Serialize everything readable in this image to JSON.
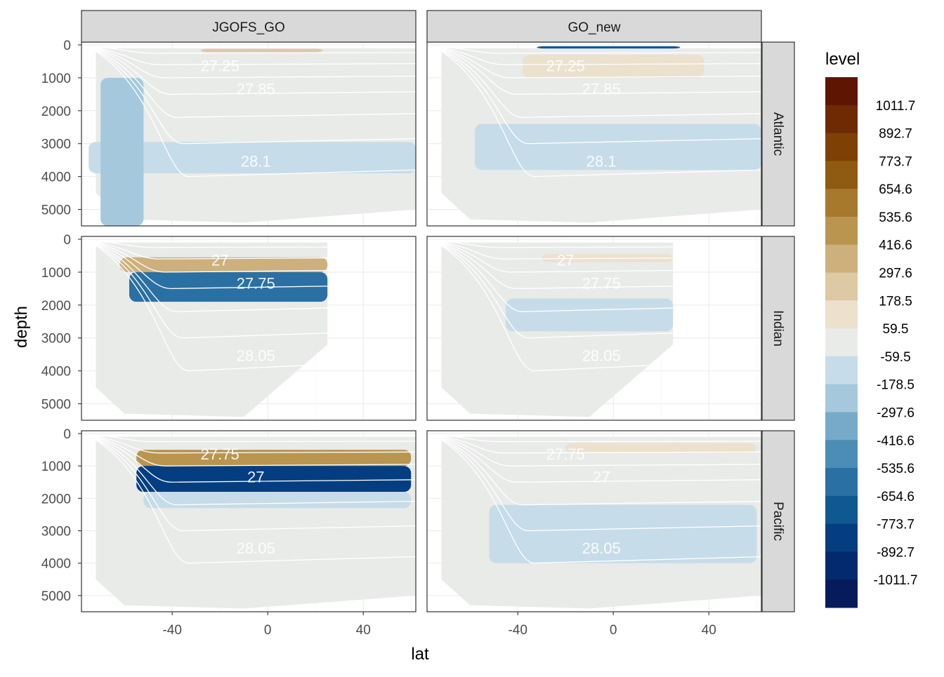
{
  "chart_data": {
    "type": "heatmap",
    "layout": "facet_grid",
    "column_facets": [
      "JGOFS_GO",
      "GO_new"
    ],
    "row_facets": [
      "Atlantic",
      "Indian",
      "Pacific"
    ],
    "xlabel": "lat",
    "ylabel": "depth",
    "x_ticks": [
      -40,
      0,
      40
    ],
    "x_tick_labels": [
      "-40",
      "0",
      "40"
    ],
    "xlim": [
      -78,
      62
    ],
    "y_ticks": [
      0,
      1000,
      2000,
      3000,
      4000,
      5000
    ],
    "y_tick_labels": [
      "0",
      "1000",
      "2000",
      "3000",
      "4000",
      "5000"
    ],
    "ylim": [
      5500,
      0
    ],
    "y_reversed": true,
    "grid": true,
    "legend": {
      "title": "level",
      "position": "right",
      "labels": [
        "1011.7",
        "892.7",
        "773.7",
        "654.6",
        "535.6",
        "416.6",
        "297.6",
        "178.5",
        "59.5",
        "-59.5",
        "-178.5",
        "-297.6",
        "-416.6",
        "-535.6",
        "-654.6",
        "-773.7",
        "-892.7",
        "-1011.7"
      ],
      "colors": [
        "#5e1502",
        "#6e2a03",
        "#7e4004",
        "#8f5a12",
        "#a6792c",
        "#b99550",
        "#cdb07c",
        "#ddc9a4",
        "#ebe1cd",
        "#e9ebe9",
        "#c6dce9",
        "#a5c8dc",
        "#76aac8",
        "#4b8db5",
        "#2a70a3",
        "#0f5890",
        "#053e80",
        "#032a6c",
        "#071b5c"
      ]
    },
    "contour_labels": {
      "Atlantic": [
        "27.25",
        "27.85",
        "28.1"
      ],
      "Indian": [
        "27",
        "27.75",
        "28.05"
      ],
      "Pacific": [
        "27.75",
        "27",
        "28.05"
      ]
    },
    "bands": [
      {
        "panel": [
          0,
          0
        ],
        "lat": [
          -28,
          23
        ],
        "depth": [
          120,
          220
        ],
        "level": 297.6
      },
      {
        "panel": [
          0,
          0
        ],
        "lat": [
          -75,
          62
        ],
        "depth": [
          2950,
          3900
        ],
        "level": -59.5
      },
      {
        "panel": [
          0,
          0
        ],
        "lat": [
          -70,
          -52
        ],
        "depth": [
          1000,
          5500
        ],
        "level": -178.5
      },
      {
        "panel": [
          0,
          1
        ],
        "lat": [
          -32,
          28
        ],
        "depth": [
          40,
          110
        ],
        "level": -654.6
      },
      {
        "panel": [
          0,
          1
        ],
        "lat": [
          -38,
          38
        ],
        "depth": [
          300,
          1000
        ],
        "level": 178.5
      },
      {
        "panel": [
          0,
          1
        ],
        "lat": [
          -58,
          62
        ],
        "depth": [
          2400,
          3800
        ],
        "level": -59.5
      },
      {
        "panel": [
          1,
          0
        ],
        "lat": [
          -62,
          25
        ],
        "depth": [
          550,
          1000
        ],
        "level": 416.6
      },
      {
        "panel": [
          1,
          0
        ],
        "lat": [
          -58,
          25
        ],
        "depth": [
          1000,
          1900
        ],
        "level": -535.6
      },
      {
        "panel": [
          1,
          1
        ],
        "lat": [
          -30,
          25
        ],
        "depth": [
          450,
          700
        ],
        "level": 178.5
      },
      {
        "panel": [
          1,
          1
        ],
        "lat": [
          -45,
          25
        ],
        "depth": [
          1800,
          2800
        ],
        "level": -59.5
      },
      {
        "panel": [
          2,
          0
        ],
        "lat": [
          -55,
          60
        ],
        "depth": [
          500,
          1000
        ],
        "level": 535.6
      },
      {
        "panel": [
          2,
          0
        ],
        "lat": [
          -55,
          60
        ],
        "depth": [
          1000,
          1800
        ],
        "level": -773.7
      },
      {
        "panel": [
          2,
          0
        ],
        "lat": [
          -52,
          60
        ],
        "depth": [
          1800,
          2300
        ],
        "level": -59.5
      },
      {
        "panel": [
          2,
          1
        ],
        "lat": [
          -20,
          60
        ],
        "depth": [
          300,
          600
        ],
        "level": 178.5
      },
      {
        "panel": [
          2,
          1
        ],
        "lat": [
          -52,
          60
        ],
        "depth": [
          2200,
          4000
        ],
        "level": -59.5
      }
    ]
  }
}
